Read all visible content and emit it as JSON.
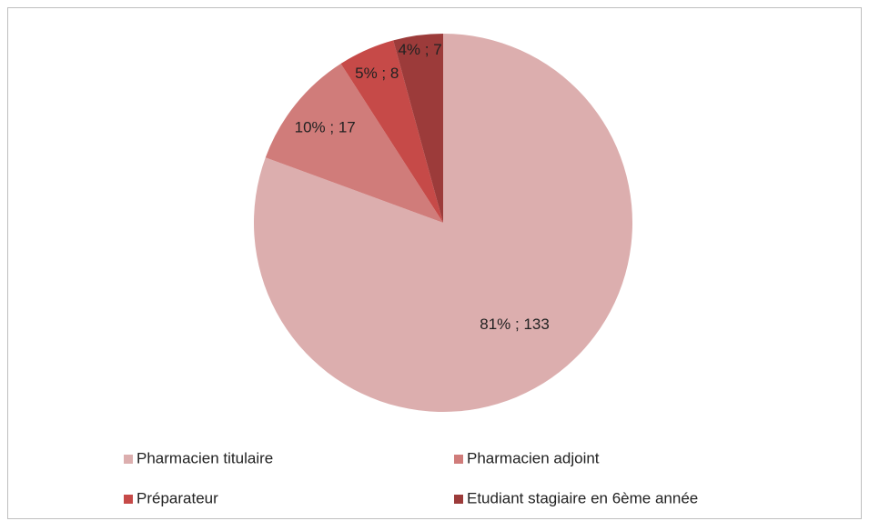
{
  "chart_data": {
    "type": "pie",
    "categories": [
      "Pharmacien titulaire",
      "Pharmacien adjoint",
      "Préparateur",
      "Etudiant stagiaire en 6ème année"
    ],
    "values": [
      133,
      17,
      8,
      7
    ],
    "value_labels": [
      "81% ; 133",
      "10% ; 17",
      "5% ; 8",
      "4% ; 7"
    ],
    "colors": [
      "#dcaeae",
      "#d07c7a",
      "#c64a48",
      "#9c3b3a"
    ],
    "legend": "bottom"
  }
}
